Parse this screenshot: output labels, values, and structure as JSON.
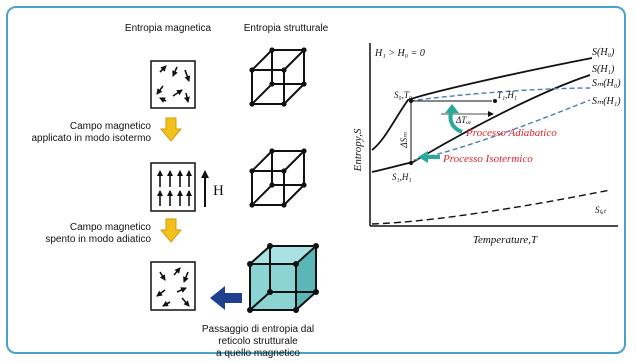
{
  "left": {
    "heading_magnetic": "Entropia magnetica",
    "heading_structural": "Entropia strutturale",
    "step1_line1": "Campo magnetico",
    "step1_line2": "applicato in modo isotermo",
    "field_symbol": "H",
    "step2_line1": "Campo magnetico",
    "step2_line2": "spento in modo adiatico",
    "caption_line1": "Passaggio di entropia dal",
    "caption_line2": "reticolo strutturale",
    "caption_line3": "a quello magnetico"
  },
  "chart": {
    "condition": "H₁ > H₀ = 0",
    "ylabel": "Entropy,S",
    "xlabel": "Temperature,T",
    "curve_S_H0": "S(H₀)",
    "curve_S_H1": "S(H₁)",
    "curve_Sm_H0": "Sₘ(H₀)",
    "curve_Sm_H1": "Sₘ(H₁)",
    "curve_Slat": "Sₗₐₜ",
    "point_start": "S₀,T₀",
    "point_adiabatic": "T₁,H₁",
    "point_isothermal": "S₁,H₁",
    "delta_T": "ΔTₐₑ",
    "delta_S": "ΔSₘ",
    "process_adiabatic": "Processo Adiabatico",
    "process_isothermal": "Processo Isotermico"
  },
  "colors": {
    "frame": "#4aa3c7",
    "arrow_yellow": "#f2c21a",
    "arrow_blue": "#1f3f8f",
    "cube_teal": "#7fcfcf",
    "process_arrow": "#2aa89a",
    "process_text": "#e0242b",
    "dashed_curve": "#4a7fb5"
  }
}
